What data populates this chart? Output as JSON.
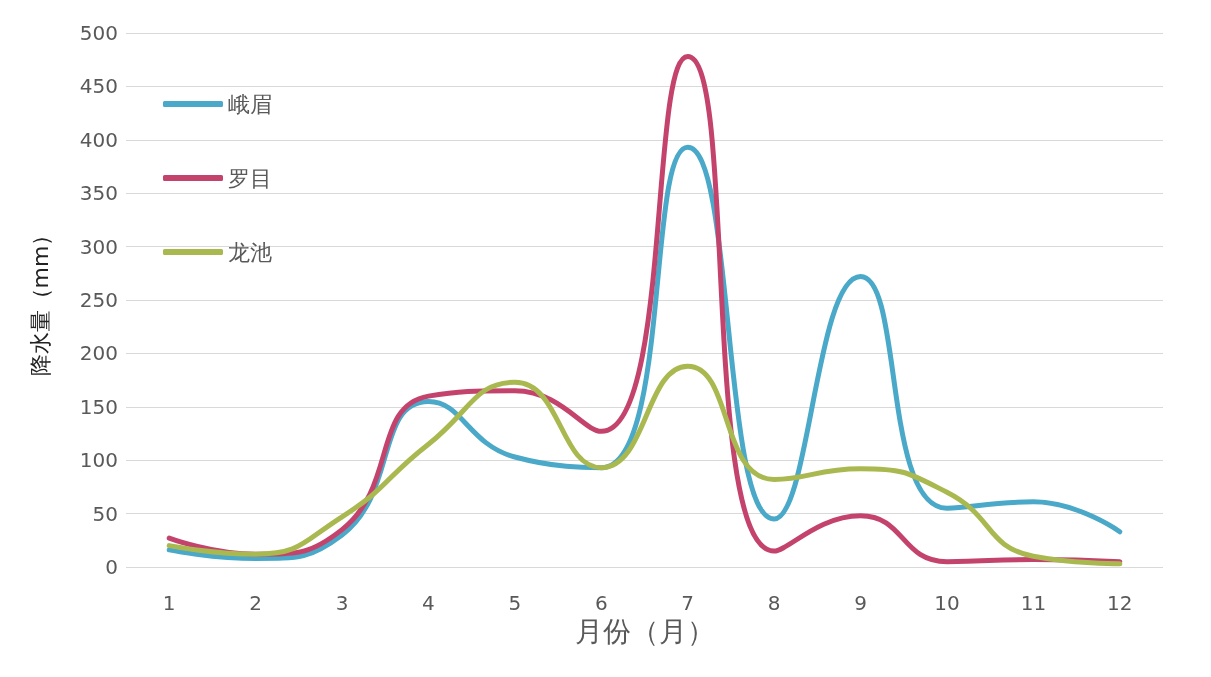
{
  "chart_data": {
    "type": "line",
    "xlabel": "月份（月）",
    "ylabel": "降水量（mm）",
    "x": [
      1,
      2,
      3,
      4,
      5,
      6,
      7,
      8,
      9,
      10,
      11,
      12
    ],
    "xlim": [
      0.5,
      12.5
    ],
    "xticks": [
      1,
      2,
      3,
      4,
      5,
      6,
      7,
      8,
      9,
      10,
      11,
      12
    ],
    "series": [
      {
        "name": "峨眉",
        "color": "#4aa8c8",
        "values": [
          16,
          8,
          30,
          155,
          103,
          93,
          393,
          45,
          272,
          55,
          61,
          33
        ]
      },
      {
        "name": "罗目",
        "color": "#c4436c",
        "values": [
          27,
          12,
          35,
          160,
          165,
          127,
          478,
          15,
          48,
          5,
          7,
          5
        ]
      },
      {
        "name": "龙池",
        "color": "#aab850",
        "values": [
          20,
          12,
          47,
          115,
          173,
          93,
          188,
          82,
          92,
          70,
          10,
          3
        ]
      }
    ],
    "ylim": [
      0,
      500
    ],
    "yticks": [
      0,
      50,
      100,
      150,
      200,
      250,
      300,
      350,
      400,
      450,
      500
    ],
    "grid": "y",
    "legend": "top left",
    "marker": "none",
    "line_style": "solid"
  }
}
